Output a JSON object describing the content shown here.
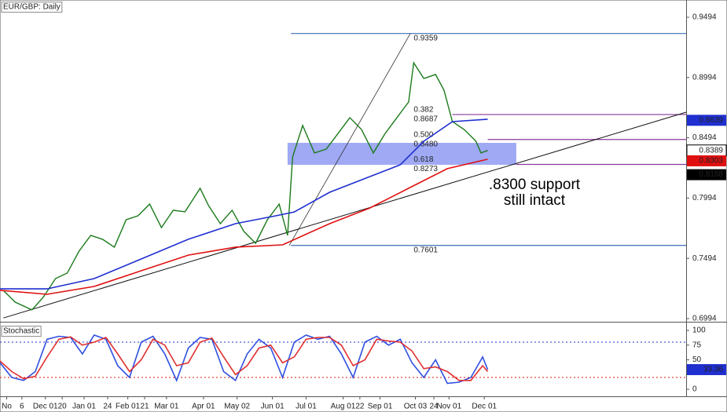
{
  "chart_data": [
    {
      "type": "line",
      "title": "EUR/GBP: Daily",
      "xlim": [
        0,
        408
      ],
      "ylim": [
        0.6968,
        0.9637
      ],
      "xticks": [
        {
          "value": 4,
          "label": "No"
        },
        {
          "value": 13,
          "label": "6"
        },
        {
          "value": 27,
          "label": "Dec 01"
        },
        {
          "value": 37,
          "label": "20"
        },
        {
          "value": 50,
          "label": "Jan 01"
        },
        {
          "value": 64,
          "label": "24"
        },
        {
          "value": 76,
          "label": "Feb 01"
        },
        {
          "value": 86,
          "label": "21"
        },
        {
          "value": 99,
          "label": "Mar 01"
        },
        {
          "value": 121,
          "label": "Apr 01"
        },
        {
          "value": 141,
          "label": "May 02"
        },
        {
          "value": 162,
          "label": "Jun 01"
        },
        {
          "value": 182,
          "label": "Jul 01"
        },
        {
          "value": 204,
          "label": "Aug 01"
        },
        {
          "value": 214,
          "label": "22"
        },
        {
          "value": 226,
          "label": "Sep 01"
        },
        {
          "value": 247,
          "label": "Oct 03"
        },
        {
          "value": 258,
          "label": "24"
        },
        {
          "value": 267,
          "label": "Nov 01"
        },
        {
          "value": 288,
          "label": "Dec 01"
        }
      ],
      "yticks": [
        0.6994,
        0.7494,
        0.7994,
        0.8494,
        0.8994,
        0.9494
      ],
      "series": [
        {
          "color": "#1b7a1b",
          "x": [
            2,
            9,
            19,
            26,
            33,
            40,
            47,
            54,
            61,
            68,
            75,
            82,
            89,
            96,
            103,
            110,
            119,
            124,
            131,
            138,
            145,
            152,
            159,
            166,
            171,
            174,
            180,
            187,
            194,
            201,
            208,
            215,
            222,
            229,
            236,
            243,
            246,
            252,
            259,
            264,
            269,
            276,
            283,
            286,
            290
          ],
          "values": [
            0.7228,
            0.7131,
            0.7066,
            0.7176,
            0.7326,
            0.7372,
            0.7554,
            0.7684,
            0.7652,
            0.7587,
            0.7814,
            0.7847,
            0.7944,
            0.7749,
            0.7893,
            0.788,
            0.8075,
            0.7932,
            0.7782,
            0.7893,
            0.7717,
            0.7619,
            0.7814,
            0.7944,
            0.7684,
            0.8335,
            0.8596,
            0.8368,
            0.84,
            0.853,
            0.8661,
            0.8563,
            0.8368,
            0.853,
            0.8661,
            0.8791,
            0.9116,
            0.8986,
            0.9019,
            0.8889,
            0.8628,
            0.8563,
            0.8466,
            0.8368,
            0.8389
          ]
        },
        {
          "color": "#1f2fd0",
          "x": [
            0,
            28,
            56,
            84,
            112,
            140,
            164,
            175,
            196,
            220,
            238,
            252,
            269,
            290
          ],
          "values": [
            0.7241,
            0.7241,
            0.7326,
            0.7489,
            0.7652,
            0.7782,
            0.7847,
            0.7879,
            0.8042,
            0.8172,
            0.827,
            0.8465,
            0.8628,
            0.8648
          ]
        },
        {
          "color": "#e01010",
          "x": [
            0,
            28,
            56,
            84,
            112,
            140,
            168,
            196,
            220,
            243,
            266,
            290
          ],
          "values": [
            0.7229,
            0.7196,
            0.7261,
            0.7391,
            0.7521,
            0.7587,
            0.7606,
            0.7782,
            0.7912,
            0.8075,
            0.8238,
            0.8316
          ]
        }
      ],
      "trendline": {
        "x": [
          2,
          408
        ],
        "values": [
          0.6999,
          0.8706
        ]
      },
      "swing": {
        "x": [
          172,
          244
        ],
        "values": [
          0.7601,
          0.9359
        ]
      },
      "zone": {
        "x": [
          171,
          307
        ],
        "values": [
          0.827,
          0.8452
        ]
      },
      "fib_levels": [
        {
          "value": 0.9359,
          "x_start": 173,
          "color": "#3a6fb5"
        },
        {
          "ratio": "0.382",
          "value": 0.8687,
          "x_start": 269,
          "color": "#8a3a9a"
        },
        {
          "ratio": "0.500",
          "value": {
            "value": 0.848,
            "label": "0.8480"
          },
          "x_start": 290,
          "color": "#8a3a9a"
        },
        {
          "ratio": "0.618",
          "value": 0.8273,
          "x_start": 307,
          "color": "#8a3a9a"
        },
        {
          "value": 0.7601,
          "x_start": 173,
          "color": "#3a6fb5"
        }
      ],
      "price_tags": [
        {
          "value": 0.8639,
          "color": "#1f2fd0"
        },
        {
          "value": 0.8389,
          "color": "#ffffff"
        },
        {
          "value": 0.8303,
          "color": "#e01010"
        },
        {
          "value": 0.8188,
          "color": "#000000"
        }
      ],
      "annotation": [
        ".8300 support",
        "still intact"
      ]
    },
    {
      "type": "line",
      "title": "Stochastic",
      "xlim": [
        0,
        408
      ],
      "ylim": [
        -12,
        110.7
      ],
      "yticks": [
        0,
        50,
        75,
        100
      ],
      "levels": [
        {
          "value": 80,
          "color": "#1f2fd0"
        },
        {
          "value": 20,
          "color": "#e01010"
        }
      ],
      "series": [
        {
          "color": "#3050e0",
          "x": [
            0,
            7,
            14,
            21,
            28,
            35,
            42,
            49,
            56,
            63,
            70,
            77,
            84,
            91,
            98,
            105,
            112,
            119,
            126,
            133,
            140,
            147,
            154,
            161,
            168,
            175,
            182,
            189,
            196,
            203,
            210,
            217,
            224,
            231,
            238,
            245,
            252,
            259,
            266,
            273,
            280,
            287,
            290
          ],
          "values": [
            45,
            20,
            15,
            30,
            85,
            90,
            88,
            60,
            92,
            85,
            40,
            20,
            80,
            90,
            60,
            15,
            70,
            88,
            85,
            30,
            15,
            60,
            85,
            70,
            20,
            80,
            92,
            85,
            90,
            60,
            20,
            80,
            90,
            75,
            85,
            45,
            20,
            50,
            10,
            12,
            20,
            55,
            33.36
          ]
        },
        {
          "color": "#e03030",
          "x": [
            0,
            7,
            14,
            21,
            28,
            35,
            42,
            49,
            56,
            63,
            70,
            77,
            84,
            91,
            98,
            105,
            112,
            119,
            126,
            133,
            140,
            147,
            154,
            161,
            168,
            175,
            182,
            189,
            196,
            203,
            210,
            217,
            224,
            231,
            238,
            245,
            252,
            259,
            266,
            273,
            280,
            287,
            290
          ],
          "values": [
            48,
            30,
            18,
            22,
            55,
            85,
            89,
            75,
            80,
            88,
            60,
            30,
            50,
            85,
            75,
            40,
            45,
            80,
            87,
            55,
            25,
            40,
            70,
            75,
            45,
            55,
            85,
            88,
            88,
            75,
            40,
            50,
            85,
            82,
            80,
            65,
            35,
            38,
            30,
            15,
            15,
            40,
            30
          ]
        }
      ],
      "price_tags": [
        {
          "value": 33.36,
          "color": "#1f2fd0"
        }
      ]
    }
  ]
}
